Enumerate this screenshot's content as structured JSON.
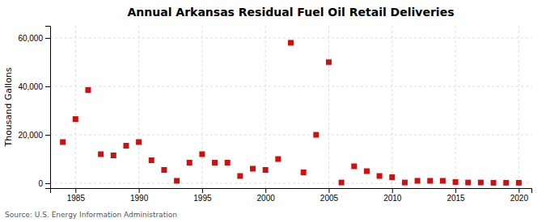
{
  "chart_data": {
    "type": "scatter",
    "title": "Annual Arkansas Residual Fuel Oil Retail Deliveries",
    "ylabel": "Thousand Gallons",
    "source": "Source: U.S. Energy Information Administration",
    "color": "#cc1111",
    "marker": "square",
    "grid": true,
    "xlim": [
      1983,
      2021
    ],
    "ylim": [
      -2000,
      65000
    ],
    "xticks": [
      1985,
      1990,
      1995,
      2000,
      2005,
      2010,
      2015,
      2020
    ],
    "yticks": [
      0,
      {
        "value": 20000,
        "label": "20,000"
      },
      {
        "value": 40000,
        "label": "40,000"
      },
      {
        "value": 60000,
        "label": "60,000"
      }
    ],
    "x": [
      1984,
      1985,
      1986,
      1987,
      1988,
      1989,
      1990,
      1991,
      1992,
      1993,
      1994,
      1995,
      1996,
      1997,
      1998,
      1999,
      2000,
      2001,
      2002,
      2003,
      2004,
      2005,
      2006,
      2007,
      2008,
      2009,
      2010,
      2011,
      2012,
      2013,
      2014,
      2015,
      2016,
      2017,
      2018,
      2019,
      2020
    ],
    "values": [
      17000,
      26500,
      38500,
      12000,
      11500,
      15500,
      17000,
      9500,
      5500,
      1000,
      8500,
      12000,
      8500,
      8500,
      3000,
      6000,
      5500,
      10000,
      58000,
      4500,
      20000,
      50000,
      300,
      7000,
      5000,
      3000,
      2500,
      300,
      1000,
      1000,
      1000,
      500,
      300,
      300,
      200,
      200,
      200
    ]
  }
}
